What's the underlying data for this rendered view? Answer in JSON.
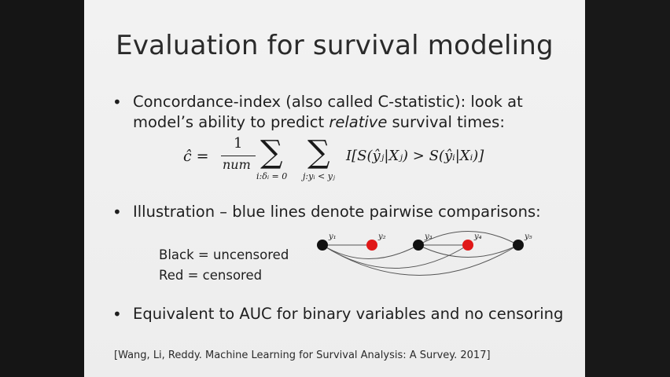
{
  "slide": {
    "title": "Evaluation for survival modeling",
    "bullet1_line1": "Concordance-index (also called C-statistic): look at",
    "bullet1_line2_pre": "model’s ability to predict ",
    "bullet1_line2_em": "relative",
    "bullet1_line2_post": " survival times:",
    "bullet2": "Illustration – blue lines denote pairwise comparisons:",
    "bullet3": "Equivalent to AUC for binary variables and no censoring",
    "legend_black": "Black = uncensored",
    "legend_red": "Red = censored",
    "citation": "[Wang, Li, Reddy. Machine Learning for Survival Analysis: A Survey. 2017]"
  },
  "formula": {
    "lhs": "ĉ =",
    "numerator": "1",
    "denominator": "num",
    "sum1_sub": "i:δᵢ = 0",
    "sum2_sub": "j:yᵢ < yⱼ",
    "body": "I[S(ŷⱼ|Xⱼ) > S(ŷᵢ|Xᵢ)]"
  },
  "graph": {
    "nodes": [
      {
        "label": "y₁",
        "color": "#111111"
      },
      {
        "label": "y₂",
        "color": "#e01818"
      },
      {
        "label": "y₃",
        "color": "#111111"
      },
      {
        "label": "y₄",
        "color": "#e01818"
      },
      {
        "label": "y₅",
        "color": "#111111"
      }
    ]
  },
  "colors": {
    "black_node": "#111111",
    "red_node": "#e01818"
  }
}
